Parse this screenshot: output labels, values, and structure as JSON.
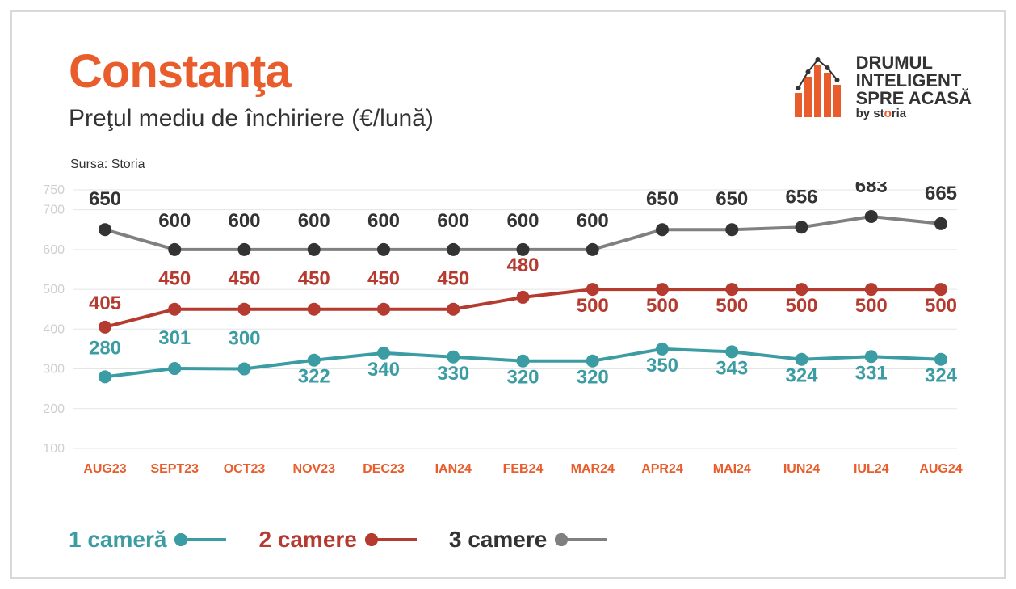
{
  "header": {
    "title": "Constanţa",
    "title_color": "#e85d2b",
    "subtitle": "Preţul mediu de închiriere (€/lună)",
    "source": "Sursa: Storia"
  },
  "logo": {
    "line1": "DRUMUL",
    "line2": "INTELIGENT",
    "line3": "SPRE ACASĂ",
    "by": "by ",
    "brand_prefix": "st",
    "brand_accent": "o",
    "brand_suffix": "ria",
    "icon_color": "#e85d2b",
    "icon_outline": "#333333"
  },
  "chart": {
    "type": "line",
    "background_color": "#ffffff",
    "ylim": [
      100,
      750
    ],
    "yticks": [
      100,
      200,
      300,
      400,
      500,
      600,
      700,
      750
    ],
    "grid_color": "#e5e5e5",
    "ytick_label_color": "#cfcfcf",
    "xtick_label_color": "#e85d2b",
    "categories": [
      "AUG23",
      "SEPT23",
      "OCT23",
      "NOV23",
      "DEC23",
      "IAN24",
      "FEB24",
      "MAR24",
      "APR24",
      "MAI24",
      "IUN24",
      "IUL24",
      "AUG24"
    ],
    "line_width": 4,
    "marker_radius": 8,
    "label_fontsize": 24,
    "series": [
      {
        "name": "1 cameră",
        "color": "#3b9ca3",
        "values": [
          280,
          301,
          300,
          322,
          340,
          330,
          320,
          320,
          350,
          343,
          324,
          331,
          324
        ],
        "label_offset": [
          -28,
          -30,
          -30,
          28,
          28,
          28,
          28,
          28,
          28,
          28,
          28,
          28,
          28
        ]
      },
      {
        "name": "2 camere",
        "color": "#b53a2f",
        "values": [
          405,
          450,
          450,
          450,
          450,
          450,
          480,
          500,
          500,
          500,
          500,
          500,
          500
        ],
        "label_offset": [
          -22,
          -30,
          -30,
          -30,
          -30,
          -30,
          -32,
          28,
          28,
          28,
          28,
          28,
          28
        ]
      },
      {
        "name": "3 camere",
        "color": "#333333",
        "line_color": "#808080",
        "values": [
          650,
          600,
          600,
          600,
          600,
          600,
          600,
          600,
          650,
          650,
          656,
          683,
          665
        ],
        "label_offset": [
          -30,
          -28,
          -28,
          -28,
          -28,
          -28,
          -28,
          -28,
          -30,
          -30,
          -30,
          -30,
          -30
        ]
      }
    ]
  },
  "legend": {
    "items": [
      {
        "label": "1 cameră",
        "color": "#3b9ca3"
      },
      {
        "label": "2 camere",
        "color": "#b53a2f"
      },
      {
        "label": "3 camere",
        "color": "#333333",
        "line_color": "#808080"
      }
    ]
  }
}
